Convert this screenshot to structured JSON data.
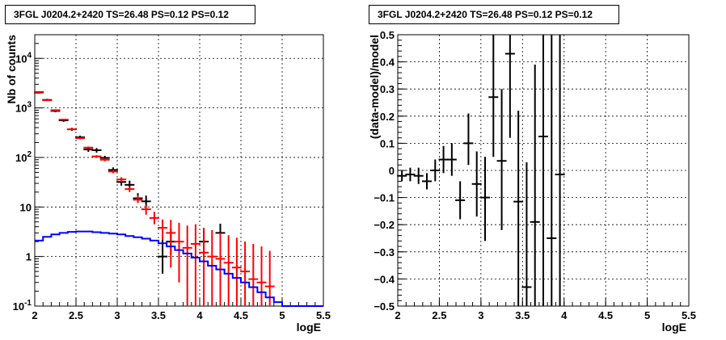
{
  "chart_data": [
    {
      "type": "line",
      "title": "3FGL J0204.2+2420 TS=26.48 PS=0.12 PS=0.12",
      "xlabel": "logE",
      "ylabel": "Nb of counts",
      "xlim": [
        2,
        5.5
      ],
      "ylim": [
        0.1,
        30000
      ],
      "log_y": true,
      "grid": true,
      "x_ticks": [
        "2",
        "2.5",
        "3",
        "3.5",
        "4",
        "4.5",
        "5",
        "5.5"
      ],
      "y_ticks": [
        {
          "value": 0.1,
          "label": "10",
          "exp": "-1"
        },
        {
          "value": 1,
          "label": "1",
          "exp": ""
        },
        {
          "value": 10,
          "label": "10",
          "exp": ""
        },
        {
          "value": 100,
          "label": "10",
          "exp": "2"
        },
        {
          "value": 1000,
          "label": "10",
          "exp": "3"
        },
        {
          "value": 10000,
          "label": "10",
          "exp": "4"
        }
      ],
      "series": [
        {
          "kind": "data",
          "color": "#000000",
          "points": [
            {
              "x": 2.05,
              "y": 2050,
              "lo": 1960,
              "hi": 2140
            },
            {
              "x": 2.15,
              "y": 1450,
              "lo": 1380,
              "hi": 1520
            },
            {
              "x": 2.25,
              "y": 870,
              "lo": 820,
              "hi": 920
            },
            {
              "x": 2.35,
              "y": 560,
              "lo": 525,
              "hi": 595
            },
            {
              "x": 2.45,
              "y": 370,
              "lo": 345,
              "hi": 395
            },
            {
              "x": 2.55,
              "y": 255,
              "lo": 235,
              "hi": 275
            },
            {
              "x": 2.65,
              "y": 145,
              "lo": 130,
              "hi": 160
            },
            {
              "x": 2.75,
              "y": 140,
              "lo": 125,
              "hi": 155
            },
            {
              "x": 2.85,
              "y": 98,
              "lo": 88,
              "hi": 108
            },
            {
              "x": 2.95,
              "y": 56,
              "lo": 49,
              "hi": 63
            },
            {
              "x": 3.05,
              "y": 32,
              "lo": 27,
              "hi": 38
            },
            {
              "x": 3.15,
              "y": 28,
              "lo": 23,
              "hi": 34
            },
            {
              "x": 3.25,
              "y": 15,
              "lo": 12,
              "hi": 19
            },
            {
              "x": 3.35,
              "y": 13,
              "lo": 10,
              "hi": 17
            },
            {
              "x": 3.55,
              "y": 1.0,
              "lo": 0.45,
              "hi": 2.2
            },
            {
              "x": 3.65,
              "y": 2.0,
              "lo": 1.1,
              "hi": 3.6
            },
            {
              "x": 4.05,
              "y": 2.0,
              "lo": 1.0,
              "hi": 3.5
            },
            {
              "x": 4.25,
              "y": 3.0,
              "lo": 1.8,
              "hi": 4.6
            }
          ]
        },
        {
          "kind": "model-points",
          "color": "#ff0000",
          "points": [
            {
              "x": 2.05,
              "y": 2100,
              "lo": 2050,
              "hi": 2150
            },
            {
              "x": 2.15,
              "y": 1430,
              "lo": 1400,
              "hi": 1460
            },
            {
              "x": 2.25,
              "y": 900,
              "lo": 880,
              "hi": 920
            },
            {
              "x": 2.35,
              "y": 580,
              "lo": 565,
              "hi": 595
            },
            {
              "x": 2.45,
              "y": 370,
              "lo": 358,
              "hi": 382
            },
            {
              "x": 2.55,
              "y": 245,
              "lo": 235,
              "hi": 255
            },
            {
              "x": 2.65,
              "y": 158,
              "lo": 150,
              "hi": 166
            },
            {
              "x": 2.75,
              "y": 105,
              "lo": 99,
              "hi": 111
            },
            {
              "x": 2.85,
              "y": 90,
              "lo": 84,
              "hi": 96
            },
            {
              "x": 2.95,
              "y": 52,
              "lo": 48,
              "hi": 56
            },
            {
              "x": 3.05,
              "y": 36,
              "lo": 32,
              "hi": 40
            },
            {
              "x": 3.15,
              "y": 23,
              "lo": 20,
              "hi": 26
            },
            {
              "x": 3.25,
              "y": 14,
              "lo": 12,
              "hi": 17
            },
            {
              "x": 3.35,
              "y": 9,
              "lo": 7,
              "hi": 11
            },
            {
              "x": 3.45,
              "y": 6,
              "lo": 4.5,
              "hi": 8
            },
            {
              "x": 3.55,
              "y": 3.8,
              "lo": 2.2,
              "hi": 5.6
            },
            {
              "x": 3.65,
              "y": 3.0,
              "lo": 0.6,
              "hi": 5.5
            },
            {
              "x": 3.75,
              "y": 2.0,
              "lo": 0.3,
              "hi": 4.8
            },
            {
              "x": 3.85,
              "y": 1.5,
              "lo": 0.1,
              "hi": 4.2
            },
            {
              "x": 3.95,
              "y": 1.8,
              "lo": 0.1,
              "hi": 4.5
            },
            {
              "x": 4.05,
              "y": 1.2,
              "lo": 0.1,
              "hi": 3.8
            },
            {
              "x": 4.15,
              "y": 1.0,
              "lo": 0.1,
              "hi": 3.4
            },
            {
              "x": 4.25,
              "y": 0.9,
              "lo": 0.1,
              "hi": 3.0
            },
            {
              "x": 4.35,
              "y": 0.75,
              "lo": 0.1,
              "hi": 2.7
            },
            {
              "x": 4.45,
              "y": 0.6,
              "lo": 0.1,
              "hi": 2.4
            },
            {
              "x": 4.55,
              "y": 0.5,
              "lo": 0.1,
              "hi": 2.0
            },
            {
              "x": 4.65,
              "y": 0.35,
              "lo": 0.1,
              "hi": 1.8
            },
            {
              "x": 4.75,
              "y": 0.3,
              "lo": 0.1,
              "hi": 1.6
            },
            {
              "x": 4.85,
              "y": 0.25,
              "lo": 0.1,
              "hi": 1.3
            }
          ]
        },
        {
          "kind": "component-histogram",
          "color": "#0000ff",
          "edges": [
            2.0,
            2.1,
            2.2,
            2.3,
            2.4,
            2.5,
            2.6,
            2.7,
            2.8,
            2.9,
            3.0,
            3.1,
            3.2,
            3.3,
            3.4,
            3.5,
            3.6,
            3.7,
            3.8,
            3.9,
            4.0,
            4.1,
            4.2,
            4.3,
            4.4,
            4.5,
            4.6,
            4.7,
            4.8,
            4.9,
            5.0,
            5.1,
            5.2,
            5.3,
            5.4,
            5.5
          ],
          "values": [
            2.1,
            2.5,
            2.8,
            3.0,
            3.15,
            3.2,
            3.2,
            3.1,
            3.0,
            2.9,
            2.8,
            2.6,
            2.45,
            2.3,
            2.1,
            1.85,
            1.6,
            1.35,
            1.15,
            0.95,
            0.8,
            0.65,
            0.55,
            0.45,
            0.37,
            0.3,
            0.24,
            0.19,
            0.15,
            0.12,
            0.1,
            0.1,
            0.1,
            0.1,
            0.1
          ]
        }
      ]
    },
    {
      "type": "scatter",
      "title": "3FGL J0204.2+2420 TS=26.48 PS=0.12 PS=0.12",
      "xlabel": "logE",
      "ylabel": "(data-model)/model",
      "xlim": [
        2,
        5.5
      ],
      "ylim": [
        -0.5,
        0.5
      ],
      "grid": true,
      "x_ticks": [
        "2",
        "2.5",
        "3",
        "3.5",
        "4",
        "4.5",
        "5",
        "5.5"
      ],
      "y_ticks": [
        "-0.5",
        "-0.4",
        "-0.3",
        "-0.2",
        "-0.1",
        "0",
        "0.1",
        "0.2",
        "0.3",
        "0.4",
        "0.5"
      ],
      "series": [
        {
          "kind": "residuals",
          "color": "#000000",
          "points": [
            {
              "x": 2.05,
              "y": -0.02,
              "lo": -0.04,
              "hi": 0.0
            },
            {
              "x": 2.15,
              "y": -0.015,
              "lo": -0.04,
              "hi": 0.01
            },
            {
              "x": 2.25,
              "y": -0.02,
              "lo": -0.05,
              "hi": 0.01
            },
            {
              "x": 2.35,
              "y": -0.04,
              "lo": -0.07,
              "hi": -0.01
            },
            {
              "x": 2.45,
              "y": 0.0,
              "lo": -0.04,
              "hi": 0.04
            },
            {
              "x": 2.55,
              "y": 0.04,
              "lo": -0.01,
              "hi": 0.09
            },
            {
              "x": 2.65,
              "y": 0.04,
              "lo": -0.02,
              "hi": 0.1
            },
            {
              "x": 2.75,
              "y": -0.11,
              "lo": -0.18,
              "hi": -0.04
            },
            {
              "x": 2.85,
              "y": 0.1,
              "lo": 0.02,
              "hi": 0.21
            },
            {
              "x": 2.95,
              "y": -0.05,
              "lo": -0.17,
              "hi": 0.07
            },
            {
              "x": 3.05,
              "y": -0.1,
              "lo": -0.26,
              "hi": 0.05
            },
            {
              "x": 3.15,
              "y": 0.27,
              "lo": 0.05,
              "hi": 0.52
            },
            {
              "x": 3.25,
              "y": 0.035,
              "lo": -0.22,
              "hi": 0.3
            },
            {
              "x": 3.35,
              "y": 0.43,
              "lo": 0.12,
              "hi": 0.52
            },
            {
              "x": 3.45,
              "y": -0.115,
              "lo": -0.52,
              "hi": 0.22
            },
            {
              "x": 3.55,
              "y": -0.43,
              "lo": -0.52,
              "hi": 0.03
            },
            {
              "x": 3.65,
              "y": -0.19,
              "lo": -0.52,
              "hi": 0.39
            },
            {
              "x": 3.75,
              "y": 0.125,
              "lo": -0.52,
              "hi": 0.52
            },
            {
              "x": 3.85,
              "y": -0.25,
              "lo": -0.52,
              "hi": 0.52
            },
            {
              "x": 3.95,
              "y": -0.015,
              "lo": -0.52,
              "hi": 0.52
            }
          ]
        }
      ]
    }
  ]
}
